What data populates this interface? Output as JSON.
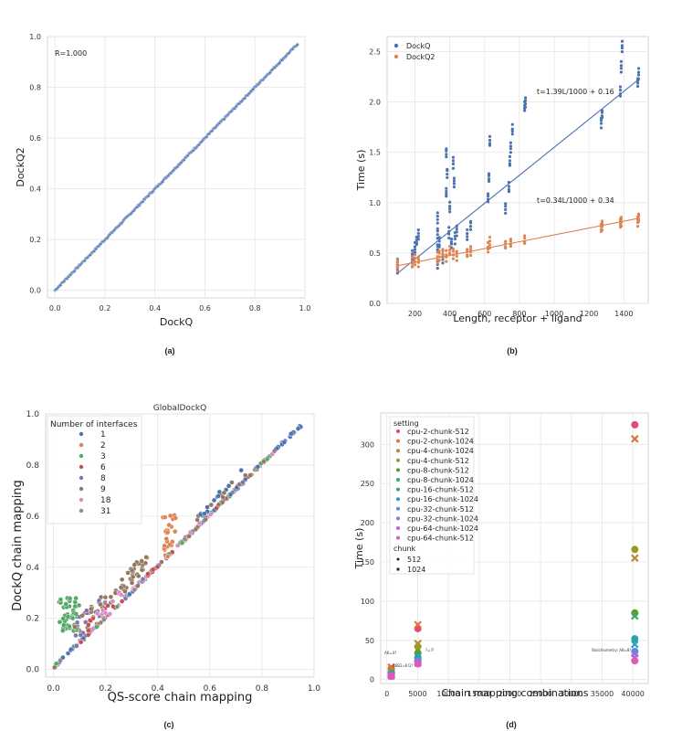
{
  "chart_data": [
    {
      "panel": "(a)",
      "type": "scatter",
      "title": "",
      "xlabel": "DockQ",
      "ylabel": "DockQ2",
      "xlim": [
        -0.03,
        1.0
      ],
      "ylim": [
        -0.03,
        1.0
      ],
      "xticks": [
        "0.0",
        "0.2",
        "0.4",
        "0.6",
        "0.8",
        "1.0"
      ],
      "yticks": [
        "0.0",
        "0.2",
        "0.4",
        "0.6",
        "0.8",
        "1.0"
      ],
      "annotation": "R=1.000",
      "series": [
        {
          "name": "points",
          "color": "#4c72b0",
          "relation": "y=x",
          "x_range": [
            0.0,
            0.97
          ]
        }
      ]
    },
    {
      "panel": "(b)",
      "type": "scatter",
      "xlabel": "Length, receptor + ligand",
      "ylabel": "Time (s)",
      "xlim": [
        40,
        1540
      ],
      "ylim": [
        0,
        2.65
      ],
      "xticks": [
        "200",
        "400",
        "600",
        "800",
        "1000",
        "1200",
        "1400"
      ],
      "yticks": [
        "0.0",
        "0.5",
        "1.0",
        "1.5",
        "2.0",
        "2.5"
      ],
      "series": [
        {
          "name": "DockQ",
          "color": "#4c72b0",
          "fit": {
            "slope": 1.39,
            "intercept": 0.16,
            "label": "t=1.39L/1000 + 0.16"
          },
          "points": [
            [
              100,
              0.35
            ],
            [
              100,
              0.4
            ],
            [
              185,
              0.42
            ],
            [
              185,
              0.48
            ],
            [
              200,
              0.55
            ],
            [
              210,
              0.62
            ],
            [
              220,
              0.68
            ],
            [
              330,
              0.4
            ],
            [
              330,
              0.55
            ],
            [
              330,
              0.7
            ],
            [
              330,
              0.85
            ],
            [
              340,
              0.6
            ],
            [
              360,
              0.45
            ],
            [
              380,
              1.1
            ],
            [
              380,
              1.5
            ],
            [
              385,
              1.3
            ],
            [
              395,
              0.7
            ],
            [
              400,
              0.95
            ],
            [
              410,
              0.6
            ],
            [
              420,
              1.4
            ],
            [
              425,
              1.2
            ],
            [
              430,
              0.65
            ],
            [
              440,
              0.72
            ],
            [
              500,
              0.68
            ],
            [
              520,
              0.78
            ],
            [
              620,
              1.05
            ],
            [
              625,
              1.25
            ],
            [
              630,
              1.6
            ],
            [
              720,
              0.95
            ],
            [
              740,
              1.15
            ],
            [
              745,
              1.4
            ],
            [
              750,
              1.55
            ],
            [
              760,
              1.72
            ],
            [
              830,
              1.95
            ],
            [
              835,
              2.0
            ],
            [
              1270,
              1.8
            ],
            [
              1275,
              1.88
            ],
            [
              1380,
              2.1
            ],
            [
              1385,
              2.35
            ],
            [
              1390,
              2.55
            ],
            [
              1480,
              2.2
            ],
            [
              1485,
              2.28
            ]
          ]
        },
        {
          "name": "DockQ2",
          "color": "#dd8452",
          "fit": {
            "slope": 0.34,
            "intercept": 0.34,
            "label": "t=0.34L/1000 + 0.34"
          },
          "points": [
            [
              100,
              0.37
            ],
            [
              100,
              0.4
            ],
            [
              185,
              0.41
            ],
            [
              200,
              0.43
            ],
            [
              220,
              0.42
            ],
            [
              330,
              0.45
            ],
            [
              340,
              0.48
            ],
            [
              360,
              0.5
            ],
            [
              380,
              0.47
            ],
            [
              400,
              0.52
            ],
            [
              420,
              0.5
            ],
            [
              440,
              0.48
            ],
            [
              500,
              0.5
            ],
            [
              520,
              0.52
            ],
            [
              620,
              0.55
            ],
            [
              630,
              0.6
            ],
            [
              720,
              0.58
            ],
            [
              750,
              0.6
            ],
            [
              830,
              0.63
            ],
            [
              1270,
              0.75
            ],
            [
              1275,
              0.78
            ],
            [
              1380,
              0.8
            ],
            [
              1385,
              0.82
            ],
            [
              1480,
              0.82
            ],
            [
              1485,
              0.85
            ]
          ]
        }
      ]
    },
    {
      "panel": "(c)",
      "type": "scatter",
      "title": "GlobalDockQ",
      "xlabel": "QS-score chain mapping",
      "ylabel": "DockQ chain mapping",
      "xlim": [
        -0.03,
        1.0
      ],
      "ylim": [
        -0.03,
        1.0
      ],
      "xticks": [
        "0.0",
        "0.2",
        "0.4",
        "0.6",
        "0.8",
        "1.0"
      ],
      "yticks": [
        "0.0",
        "0.2",
        "0.4",
        "0.6",
        "0.8",
        "1.0"
      ],
      "legend_title": "Number of interfaces",
      "legend_position": "top-left",
      "series": [
        {
          "name": "1",
          "color": "#4c72b0"
        },
        {
          "name": "2",
          "color": "#dd8452"
        },
        {
          "name": "3",
          "color": "#55a868"
        },
        {
          "name": "6",
          "color": "#c44e52"
        },
        {
          "name": "8",
          "color": "#8172b3"
        },
        {
          "name": "9",
          "color": "#937860"
        },
        {
          "name": "18",
          "color": "#da8bc3"
        },
        {
          "name": "31",
          "color": "#8c8c8c"
        }
      ]
    },
    {
      "panel": "(d)",
      "type": "scatter",
      "xlabel": "Chain mapping combinations",
      "ylabel": "Time (s)",
      "xlim": [
        -1000,
        42500
      ],
      "ylim": [
        -5,
        340
      ],
      "xticks": [
        "0",
        "5000",
        "10000",
        "15000",
        "20000",
        "25000",
        "30000",
        "35000",
        "40000"
      ],
      "yticks": [
        "0",
        "50",
        "100",
        "150",
        "200",
        "250",
        "300"
      ],
      "legend_title": "setting",
      "legend_position": "top-left",
      "size_title": "chunk",
      "sizes": [
        {
          "label": "512",
          "marker": "circle"
        },
        {
          "label": "1024",
          "marker": "x"
        }
      ],
      "annotations": [
        "A6=4?",
        "A6B2=6!2!",
        "?=7!",
        "Stoichiometry: A8=8!"
      ],
      "series": [
        {
          "name": "cpu-2-chunk-512",
          "color": "#e24a78",
          "chunk": 512,
          "points": [
            [
              720,
              14
            ],
            [
              5040,
              65
            ],
            [
              40320,
              325
            ]
          ]
        },
        {
          "name": "cpu-2-chunk-1024",
          "color": "#d9773a",
          "chunk": 1024,
          "points": [
            [
              720,
              16
            ],
            [
              5040,
              70
            ],
            [
              40320,
              307
            ]
          ]
        },
        {
          "name": "cpu-4-chunk-1024",
          "color": "#b58a2b",
          "chunk": 1024,
          "points": [
            [
              720,
              10
            ],
            [
              5040,
              46
            ],
            [
              40320,
              155
            ]
          ]
        },
        {
          "name": "cpu-4-chunk-512",
          "color": "#9a9a2a",
          "chunk": 512,
          "points": [
            [
              720,
              9
            ],
            [
              5040,
              42
            ],
            [
              40320,
              166
            ]
          ]
        },
        {
          "name": "cpu-8-chunk-512",
          "color": "#5aa028",
          "chunk": 512,
          "points": [
            [
              720,
              7
            ],
            [
              5040,
              34
            ],
            [
              40320,
              85
            ]
          ]
        },
        {
          "name": "cpu-8-chunk-1024",
          "color": "#3aaa6a",
          "chunk": 1024,
          "points": [
            [
              720,
              7
            ],
            [
              5040,
              30
            ],
            [
              40320,
              81
            ]
          ]
        },
        {
          "name": "cpu-16-chunk-512",
          "color": "#2aa8a0",
          "chunk": 512,
          "points": [
            [
              720,
              6
            ],
            [
              5040,
              28
            ],
            [
              40320,
              52
            ]
          ]
        },
        {
          "name": "cpu-16-chunk-1024",
          "color": "#2a9cc8",
          "chunk": 1024,
          "points": [
            [
              720,
              6
            ],
            [
              5040,
              26
            ],
            [
              40320,
              45
            ]
          ]
        },
        {
          "name": "cpu-32-chunk-512",
          "color": "#5a8ce0",
          "chunk": 512,
          "points": [
            [
              720,
              5
            ],
            [
              5040,
              24
            ],
            [
              40320,
              36
            ]
          ]
        },
        {
          "name": "cpu-32-chunk-1024",
          "color": "#8a78e0",
          "chunk": 1024,
          "points": [
            [
              720,
              5
            ],
            [
              5040,
              22
            ],
            [
              40320,
              33
            ]
          ]
        },
        {
          "name": "cpu-64-chunk-1024",
          "color": "#c060d8",
          "chunk": 1024,
          "points": [
            [
              720,
              5
            ],
            [
              5040,
              21
            ],
            [
              40320,
              28
            ]
          ]
        },
        {
          "name": "cpu-64-chunk-512",
          "color": "#e058b8",
          "chunk": 512,
          "points": [
            [
              720,
              4
            ],
            [
              5040,
              20
            ],
            [
              40320,
              24
            ]
          ]
        }
      ]
    }
  ]
}
